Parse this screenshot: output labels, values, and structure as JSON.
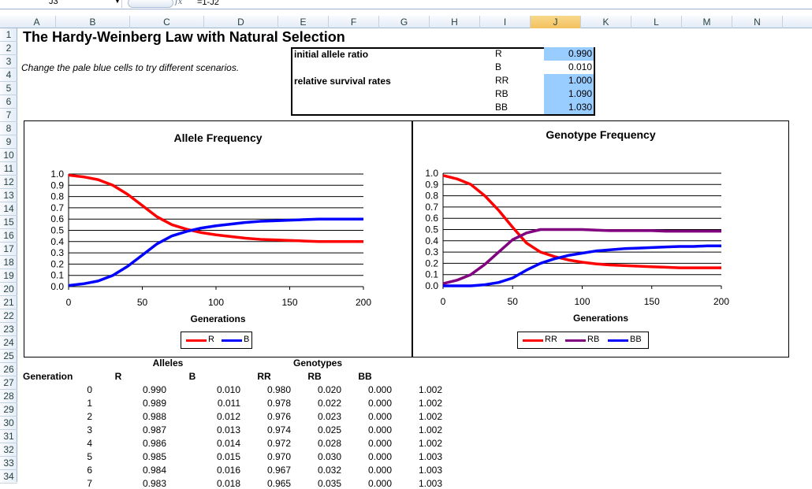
{
  "formula_bar": {
    "cell_ref": "J3",
    "fx": "fx",
    "formula": "=1-J2"
  },
  "columns": [
    "A",
    "B",
    "C",
    "D",
    "E",
    "F",
    "G",
    "H",
    "I",
    "J",
    "K",
    "L",
    "M",
    "N"
  ],
  "selected_column": "J",
  "rows": [
    "1",
    "2",
    "3",
    "4",
    "5",
    "6",
    "7",
    "8",
    "9",
    "10",
    "11",
    "12",
    "13",
    "14",
    "15",
    "16",
    "17",
    "18",
    "19",
    "20",
    "21",
    "22",
    "23",
    "24",
    "25",
    "26",
    "27",
    "28",
    "29",
    "30",
    "31",
    "32",
    "33",
    "34"
  ],
  "sheet": {
    "title": "The Hardy-Weinberg Law with Natural Selection",
    "subtitle": "Change the pale blue cells to try different scenarios.",
    "params": {
      "initial_label": "initial allele ratio",
      "survival_label": "relative survival rates",
      "names": [
        "R",
        "B",
        "RR",
        "RB",
        "BB"
      ],
      "values": [
        "0.990",
        "0.010",
        "1.000",
        "1.090",
        "1.030"
      ]
    },
    "table": {
      "alleles_header": "Alleles",
      "genotypes_header": "Genotypes",
      "col_headers": [
        "Generation",
        "R",
        "B",
        "RR",
        "RB",
        "BB"
      ],
      "rows": [
        [
          "0",
          "0.990",
          "0.010",
          "0.980",
          "0.020",
          "0.000",
          "1.002"
        ],
        [
          "1",
          "0.989",
          "0.011",
          "0.978",
          "0.022",
          "0.000",
          "1.002"
        ],
        [
          "2",
          "0.988",
          "0.012",
          "0.976",
          "0.023",
          "0.000",
          "1.002"
        ],
        [
          "3",
          "0.987",
          "0.013",
          "0.974",
          "0.025",
          "0.000",
          "1.002"
        ],
        [
          "4",
          "0.986",
          "0.014",
          "0.972",
          "0.028",
          "0.000",
          "1.002"
        ],
        [
          "5",
          "0.985",
          "0.015",
          "0.970",
          "0.030",
          "0.000",
          "1.003"
        ],
        [
          "6",
          "0.984",
          "0.016",
          "0.967",
          "0.032",
          "0.000",
          "1.003"
        ],
        [
          "7",
          "0.983",
          "0.018",
          "0.965",
          "0.035",
          "0.000",
          "1.003"
        ]
      ]
    }
  },
  "chart_data": [
    {
      "type": "line",
      "title": "Allele Frequency",
      "xlabel": "Generations",
      "ylabel": "",
      "xlim": [
        0,
        200
      ],
      "ylim": [
        0,
        1.0
      ],
      "x_ticks": [
        0,
        50,
        100,
        150,
        200
      ],
      "y_ticks": [
        "0.0",
        "0.1",
        "0.2",
        "0.3",
        "0.4",
        "0.5",
        "0.6",
        "0.7",
        "0.8",
        "0.9",
        "1.0"
      ],
      "x": [
        0,
        10,
        20,
        30,
        40,
        50,
        60,
        70,
        80,
        90,
        100,
        110,
        120,
        130,
        140,
        150,
        160,
        170,
        180,
        190,
        200
      ],
      "series": [
        {
          "name": "R",
          "color": "#ff0000",
          "values": [
            0.99,
            0.975,
            0.95,
            0.9,
            0.82,
            0.72,
            0.62,
            0.55,
            0.51,
            0.48,
            0.46,
            0.445,
            0.43,
            0.42,
            0.415,
            0.41,
            0.405,
            0.4,
            0.4,
            0.4,
            0.4
          ]
        },
        {
          "name": "B",
          "color": "#0000ff",
          "values": [
            0.01,
            0.025,
            0.05,
            0.1,
            0.18,
            0.28,
            0.38,
            0.45,
            0.49,
            0.52,
            0.54,
            0.555,
            0.57,
            0.58,
            0.585,
            0.59,
            0.595,
            0.6,
            0.6,
            0.6,
            0.6
          ]
        }
      ],
      "legend": "bottom"
    },
    {
      "type": "line",
      "title": "Genotype Frequency",
      "xlabel": "Generations",
      "ylabel": "",
      "xlim": [
        0,
        200
      ],
      "ylim": [
        0,
        1.0
      ],
      "x_ticks": [
        0,
        50,
        100,
        150,
        200
      ],
      "y_ticks": [
        "0.0",
        "0.1",
        "0.2",
        "0.3",
        "0.4",
        "0.5",
        "0.6",
        "0.7",
        "0.8",
        "0.9",
        "1.0"
      ],
      "x": [
        0,
        10,
        20,
        30,
        40,
        50,
        60,
        70,
        80,
        90,
        100,
        110,
        120,
        130,
        140,
        150,
        160,
        170,
        180,
        190,
        200
      ],
      "series": [
        {
          "name": "RR",
          "color": "#ff0000",
          "values": [
            0.98,
            0.95,
            0.9,
            0.8,
            0.67,
            0.52,
            0.38,
            0.3,
            0.26,
            0.23,
            0.21,
            0.195,
            0.185,
            0.18,
            0.175,
            0.17,
            0.165,
            0.16,
            0.16,
            0.16,
            0.16
          ]
        },
        {
          "name": "RB",
          "color": "#800080",
          "values": [
            0.02,
            0.05,
            0.1,
            0.19,
            0.3,
            0.41,
            0.47,
            0.5,
            0.5,
            0.5,
            0.5,
            0.495,
            0.49,
            0.49,
            0.49,
            0.49,
            0.485,
            0.485,
            0.485,
            0.485,
            0.485
          ]
        },
        {
          "name": "BB",
          "color": "#0000ff",
          "values": [
            0.0,
            0.0,
            0.0,
            0.01,
            0.03,
            0.07,
            0.14,
            0.2,
            0.24,
            0.27,
            0.29,
            0.31,
            0.32,
            0.33,
            0.335,
            0.34,
            0.345,
            0.35,
            0.35,
            0.355,
            0.355
          ]
        }
      ],
      "legend": "bottom"
    }
  ]
}
